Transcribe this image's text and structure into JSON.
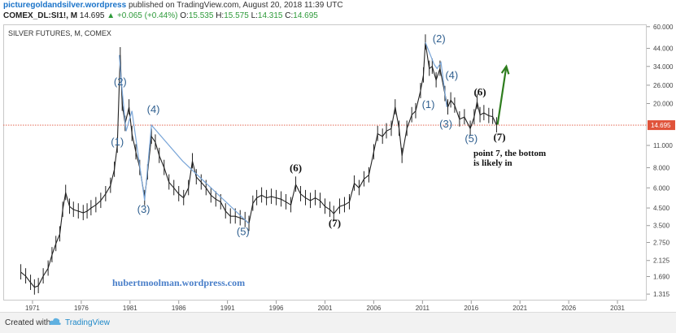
{
  "header": {
    "site": "picturegoldandsilver.wordpress",
    "published": "published on TradingView.com, August 20, 2018 11:39 UTC",
    "symbol": "COMEX_DL:SI1!, M",
    "last": "14.695",
    "change_arrow": "▲",
    "change": "+0.065 (+0.44%)",
    "o_label": "O:",
    "o_val": "15.535",
    "h_label": "H:",
    "h_val": "15.575",
    "l_label": "L:",
    "l_val": "14.315",
    "c_label": "C:",
    "c_val": "14.695"
  },
  "footer": {
    "created_with": "Created with",
    "brand": "TradingView",
    "icon": "tradingview-cloud-icon"
  },
  "colors": {
    "candle": "#222222",
    "wave_line": "#7aa6d8",
    "wave_label": "#2f5f8f",
    "price_line": "#e0533a",
    "arrow": "#2e7d1e",
    "watermark": "#4a7fc9"
  },
  "chart_data": {
    "type": "line",
    "title": "SILVER FUTURES, M, COMEX",
    "scale": "log",
    "x_ticks": [
      "1971",
      "1976",
      "1981",
      "1986",
      "1991",
      "1996",
      "2001",
      "2006",
      "2011",
      "2016",
      "2021",
      "2026",
      "2031"
    ],
    "y_ticks": [
      "60.000",
      "44.000",
      "34.000",
      "26.000",
      "20.000",
      "14.695",
      "11.000",
      "8.000",
      "6.000",
      "4.500",
      "3.500",
      "2.750",
      "2.125",
      "1.690",
      "1.315"
    ],
    "ylim": [
      1.2,
      62
    ],
    "xlim": [
      1968,
      2034
    ],
    "current_price": 14.695,
    "series": [
      {
        "values": [
          [
            1969.8,
            1.8
          ],
          [
            1970.3,
            1.7
          ],
          [
            1970.8,
            1.55
          ],
          [
            1971.2,
            1.45
          ],
          [
            1971.6,
            1.48
          ],
          [
            1972.1,
            1.7
          ],
          [
            1972.6,
            1.9
          ],
          [
            1973.0,
            2.3
          ],
          [
            1973.4,
            2.7
          ],
          [
            1973.8,
            3.1
          ],
          [
            1974.1,
            4.4
          ],
          [
            1974.4,
            5.6
          ],
          [
            1974.8,
            4.6
          ],
          [
            1975.2,
            4.4
          ],
          [
            1975.7,
            4.3
          ],
          [
            1976.2,
            4.2
          ],
          [
            1976.6,
            4.3
          ],
          [
            1977.0,
            4.5
          ],
          [
            1977.5,
            4.7
          ],
          [
            1978.0,
            5.0
          ],
          [
            1978.5,
            5.5
          ],
          [
            1979.0,
            6.2
          ],
          [
            1979.4,
            7.8
          ],
          [
            1979.7,
            11.0
          ],
          [
            1980.0,
            40.0
          ],
          [
            1980.2,
            20.0
          ],
          [
            1980.5,
            15.0
          ],
          [
            1980.9,
            19.0
          ],
          [
            1981.2,
            13.0
          ],
          [
            1981.6,
            10.0
          ],
          [
            1982.0,
            8.0
          ],
          [
            1982.5,
            5.2
          ],
          [
            1982.8,
            7.5
          ],
          [
            1983.2,
            12.5
          ],
          [
            1983.6,
            11.5
          ],
          [
            1984.0,
            9.5
          ],
          [
            1984.5,
            8.0
          ],
          [
            1985.0,
            6.5
          ],
          [
            1985.5,
            6.0
          ],
          [
            1986.0,
            5.5
          ],
          [
            1986.5,
            5.2
          ],
          [
            1987.0,
            6.0
          ],
          [
            1987.4,
            8.8
          ],
          [
            1987.8,
            7.0
          ],
          [
            1988.3,
            6.5
          ],
          [
            1988.8,
            6.0
          ],
          [
            1989.3,
            5.4
          ],
          [
            1989.8,
            5.1
          ],
          [
            1990.3,
            4.9
          ],
          [
            1990.8,
            4.3
          ],
          [
            1991.3,
            4.0
          ],
          [
            1991.8,
            4.0
          ],
          [
            1992.3,
            3.9
          ],
          [
            1992.8,
            3.8
          ],
          [
            1993.2,
            3.6
          ],
          [
            1993.6,
            4.8
          ],
          [
            1994.0,
            5.2
          ],
          [
            1994.5,
            5.4
          ],
          [
            1995.0,
            5.2
          ],
          [
            1995.5,
            5.3
          ],
          [
            1996.0,
            5.2
          ],
          [
            1996.5,
            5.1
          ],
          [
            1997.0,
            4.9
          ],
          [
            1997.5,
            4.7
          ],
          [
            1998.0,
            6.3
          ],
          [
            1998.5,
            5.5
          ],
          [
            1999.0,
            5.2
          ],
          [
            1999.5,
            5.0
          ],
          [
            2000.0,
            5.2
          ],
          [
            2000.5,
            5.0
          ],
          [
            2001.0,
            4.6
          ],
          [
            2001.5,
            4.4
          ],
          [
            2001.9,
            4.15
          ],
          [
            2002.5,
            4.6
          ],
          [
            2003.0,
            4.7
          ],
          [
            2003.5,
            4.9
          ],
          [
            2004.0,
            6.4
          ],
          [
            2004.5,
            6.0
          ],
          [
            2005.0,
            6.8
          ],
          [
            2005.5,
            7.2
          ],
          [
            2006.0,
            10.0
          ],
          [
            2006.4,
            13.0
          ],
          [
            2006.9,
            12.5
          ],
          [
            2007.3,
            13.5
          ],
          [
            2007.8,
            14.0
          ],
          [
            2008.2,
            19.0
          ],
          [
            2008.6,
            14.0
          ],
          [
            2008.9,
            9.5
          ],
          [
            2009.4,
            14.0
          ],
          [
            2009.9,
            17.0
          ],
          [
            2010.3,
            18.0
          ],
          [
            2010.8,
            24.0
          ],
          [
            2011.1,
            30.0
          ],
          [
            2011.3,
            48.0
          ],
          [
            2011.7,
            33.0
          ],
          [
            2012.0,
            34.0
          ],
          [
            2012.4,
            28.0
          ],
          [
            2012.8,
            33.0
          ],
          [
            2013.3,
            23.0
          ],
          [
            2013.6,
            19.0
          ],
          [
            2013.9,
            21.0
          ],
          [
            2014.3,
            19.5
          ],
          [
            2014.8,
            16.0
          ],
          [
            2015.3,
            16.5
          ],
          [
            2015.9,
            14.0
          ],
          [
            2016.3,
            16.5
          ],
          [
            2016.6,
            20.5
          ],
          [
            2016.9,
            17.0
          ],
          [
            2017.3,
            17.5
          ],
          [
            2017.8,
            16.8
          ],
          [
            2018.2,
            16.6
          ],
          [
            2018.6,
            14.7
          ]
        ]
      }
    ],
    "waves": [
      [
        [
          1979.9,
          40.0
        ],
        [
          1980.2,
          24.0
        ],
        [
          1980.6,
          13.5
        ],
        [
          1981.2,
          18.0
        ],
        [
          1982.5,
          5.0
        ],
        [
          1983.2,
          14.7
        ],
        [
          1986.4,
          8.8
        ],
        [
          1993.2,
          3.6
        ]
      ],
      [
        [
          2011.3,
          48.0
        ],
        [
          2012.2,
          35.0
        ],
        [
          2012.5,
          33.0
        ],
        [
          2012.9,
          36.0
        ],
        [
          2013.5,
          19.0
        ]
      ]
    ],
    "annotations": [
      {
        "label": "(1)",
        "x": 1979.7,
        "y": 11.0,
        "kind": "wave"
      },
      {
        "label": "(2)",
        "x": 1980.0,
        "y": 26.0,
        "kind": "wave"
      },
      {
        "label": "(3)",
        "x": 1982.4,
        "y": 4.2,
        "kind": "wave"
      },
      {
        "label": "(4)",
        "x": 1983.4,
        "y": 17.5,
        "kind": "wave"
      },
      {
        "label": "(5)",
        "x": 1992.6,
        "y": 3.05,
        "kind": "wave"
      },
      {
        "label": "(6)",
        "x": 1998.0,
        "y": 7.6,
        "kind": "bold"
      },
      {
        "label": "(7)",
        "x": 2002.0,
        "y": 3.45,
        "kind": "bold"
      },
      {
        "label": "(1)",
        "x": 2011.6,
        "y": 18.8,
        "kind": "wave"
      },
      {
        "label": "(2)",
        "x": 2012.7,
        "y": 48.0,
        "kind": "wave"
      },
      {
        "label": "(4)",
        "x": 2014.0,
        "y": 28.5,
        "kind": "wave"
      },
      {
        "label": "(3)",
        "x": 2013.4,
        "y": 14.2,
        "kind": "wave"
      },
      {
        "label": "(5)",
        "x": 2016.0,
        "y": 11.5,
        "kind": "wave"
      },
      {
        "label": "(6)",
        "x": 2016.9,
        "y": 22.5,
        "kind": "bold"
      },
      {
        "label": "(7)",
        "x": 2018.9,
        "y": 11.8,
        "kind": "bold"
      }
    ],
    "note_line1": "point 7, the bottom",
    "note_line2": "is likely in",
    "watermark": "hubertmoolman.wordpress.com",
    "arrow": {
      "from": [
        2018.7,
        14.8
      ],
      "to": [
        2019.6,
        34.0
      ]
    }
  }
}
